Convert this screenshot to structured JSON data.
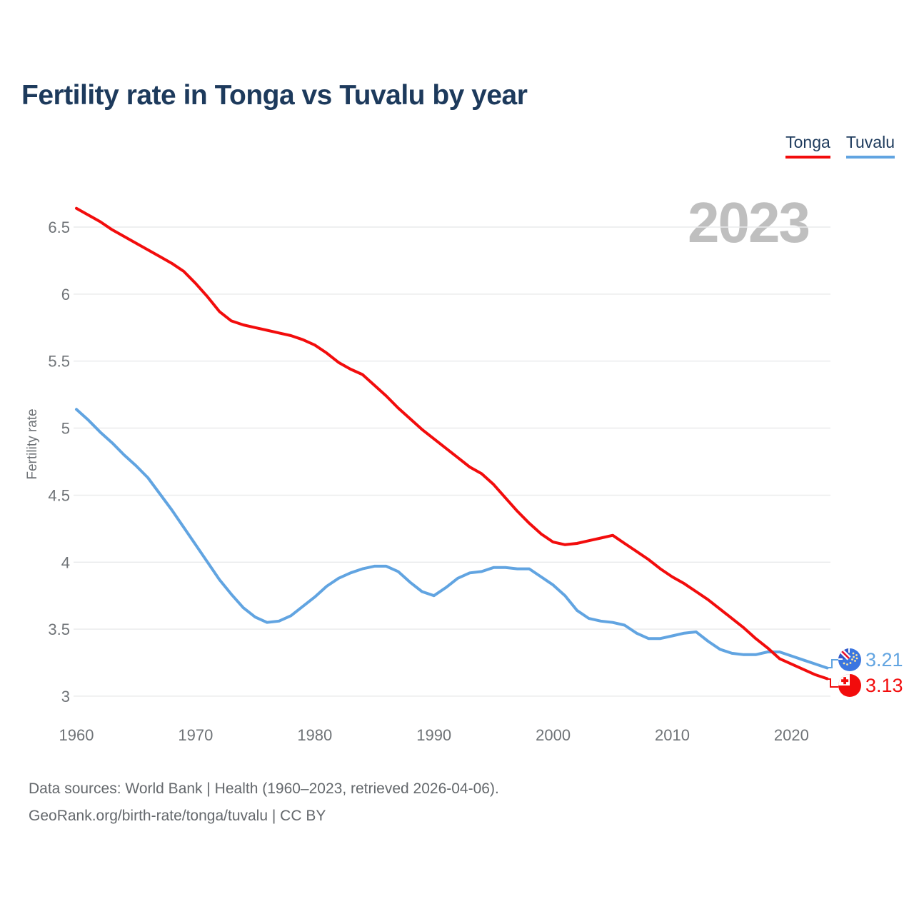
{
  "title": "Fertility rate in Tonga vs Tuvalu by year",
  "watermark": "2023",
  "y_axis_title": "Fertility rate",
  "legend": {
    "items": [
      {
        "label": "Tonga",
        "color": "#f20c0c"
      },
      {
        "label": "Tuvalu",
        "color": "#61a4e1"
      }
    ]
  },
  "end_labels": {
    "tuvalu": "3.21",
    "tonga": "3.13"
  },
  "footer": {
    "line1": "Data sources: World Bank | Health (1960–2023, retrieved 2026-04-06).",
    "line2": "GeoRank.org/birth-rate/tonga/tuvalu | CC BY"
  },
  "chart_data": {
    "type": "line",
    "title": "Fertility rate in Tonga vs Tuvalu by year",
    "xlabel": "",
    "ylabel": "Fertility rate",
    "grid": true,
    "legend_position": "top-right",
    "x_range": [
      1960,
      2023
    ],
    "ylim": [
      2.95,
      6.8
    ],
    "xticks": [
      1960,
      1970,
      1980,
      1990,
      2000,
      2010,
      2020
    ],
    "yticks": [
      3,
      3.5,
      4,
      4.5,
      5,
      5.5,
      6,
      6.5
    ],
    "x": [
      1960,
      1961,
      1962,
      1963,
      1964,
      1965,
      1966,
      1967,
      1968,
      1969,
      1970,
      1971,
      1972,
      1973,
      1974,
      1975,
      1976,
      1977,
      1978,
      1979,
      1980,
      1981,
      1982,
      1983,
      1984,
      1985,
      1986,
      1987,
      1988,
      1989,
      1990,
      1991,
      1992,
      1993,
      1994,
      1995,
      1996,
      1997,
      1998,
      1999,
      2000,
      2001,
      2002,
      2003,
      2004,
      2005,
      2006,
      2007,
      2008,
      2009,
      2010,
      2011,
      2012,
      2013,
      2014,
      2015,
      2016,
      2017,
      2018,
      2019,
      2020,
      2021,
      2022,
      2023
    ],
    "series": [
      {
        "name": "Tuvalu",
        "color": "#61a4e1",
        "values": [
          5.14,
          5.06,
          4.97,
          4.89,
          4.8,
          4.72,
          4.63,
          4.51,
          4.39,
          4.26,
          4.13,
          4.0,
          3.87,
          3.76,
          3.66,
          3.59,
          3.55,
          3.56,
          3.6,
          3.67,
          3.74,
          3.82,
          3.88,
          3.92,
          3.95,
          3.97,
          3.97,
          3.93,
          3.85,
          3.78,
          3.75,
          3.81,
          3.88,
          3.92,
          3.93,
          3.96,
          3.96,
          3.95,
          3.95,
          3.89,
          3.83,
          3.75,
          3.64,
          3.58,
          3.56,
          3.55,
          3.53,
          3.47,
          3.43,
          3.43,
          3.45,
          3.47,
          3.48,
          3.41,
          3.35,
          3.32,
          3.31,
          3.31,
          3.33,
          3.33,
          3.3,
          3.27,
          3.24,
          3.21
        ],
        "end_value": 3.21
      },
      {
        "name": "Tonga",
        "color": "#f20c0c",
        "values": [
          6.64,
          6.59,
          6.54,
          6.48,
          6.43,
          6.38,
          6.33,
          6.28,
          6.23,
          6.17,
          6.08,
          5.98,
          5.87,
          5.8,
          5.77,
          5.75,
          5.73,
          5.71,
          5.69,
          5.66,
          5.62,
          5.56,
          5.49,
          5.44,
          5.4,
          5.32,
          5.24,
          5.15,
          5.07,
          4.99,
          4.92,
          4.85,
          4.78,
          4.71,
          4.66,
          4.58,
          4.48,
          4.38,
          4.29,
          4.21,
          4.15,
          4.13,
          4.14,
          4.16,
          4.18,
          4.2,
          4.14,
          4.08,
          4.02,
          3.95,
          3.89,
          3.84,
          3.78,
          3.72,
          3.65,
          3.58,
          3.51,
          3.43,
          3.36,
          3.28,
          3.24,
          3.2,
          3.16,
          3.13
        ],
        "end_value": 3.13
      }
    ]
  }
}
